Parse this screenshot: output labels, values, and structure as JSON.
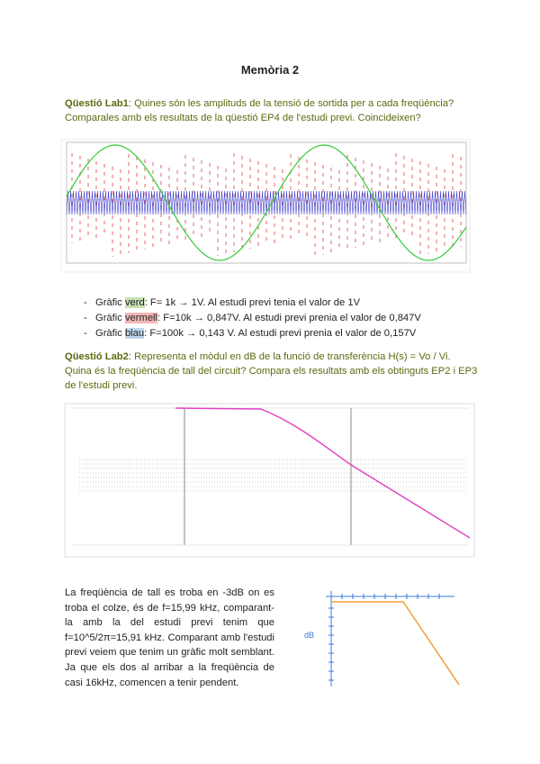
{
  "title": "Memòria 2",
  "q1": {
    "label": "Qüestió Lab1",
    "text": ": Quines són les amplituds de la tensió de sortida per a cada freqüència? Comparales amb els resultats de la qüestió EP4 de l'estudi previ. Coincideixen?"
  },
  "bullets": [
    {
      "prefix": "Gràfic ",
      "color": "verd",
      "text": ": F= 1k → 1V. Al estudi previ tenia el valor de 1V"
    },
    {
      "prefix": "Gràfic ",
      "color": "vermell",
      "text": ": F=10k → 0,847V. Al estudi previ prenia el valor de 0,847V"
    },
    {
      "prefix": "Gràfic ",
      "color": "blau",
      "text": ": F=100k → 0,143 V. Al estudi previ prenia el valor de 0,157V"
    }
  ],
  "q2": {
    "label": "Qüestió Lab2",
    "text": ": Representa el mòdul en dB de la funció de transferència H(s) = Vo / Vi. Quina és la freqüència de tall del circuit? Compara els resultats amb els obtinguts EP2 i EP3 de l'estudi previ."
  },
  "paragraph": "La freqüència de tall es troba en -3dB on es troba el colze, és de f=15,99 kHz, comparant-la amb la del estudi previ tenim que f=10^5/2π=15,91 kHz. Comparant amb l'estudi previ veiem que tenim un gràfic molt semblant. Ja que els dos al arribar a la freqüència de casi 16kHz, comencen a tenir pendent.",
  "sketch": {
    "y_label": "dB"
  }
}
